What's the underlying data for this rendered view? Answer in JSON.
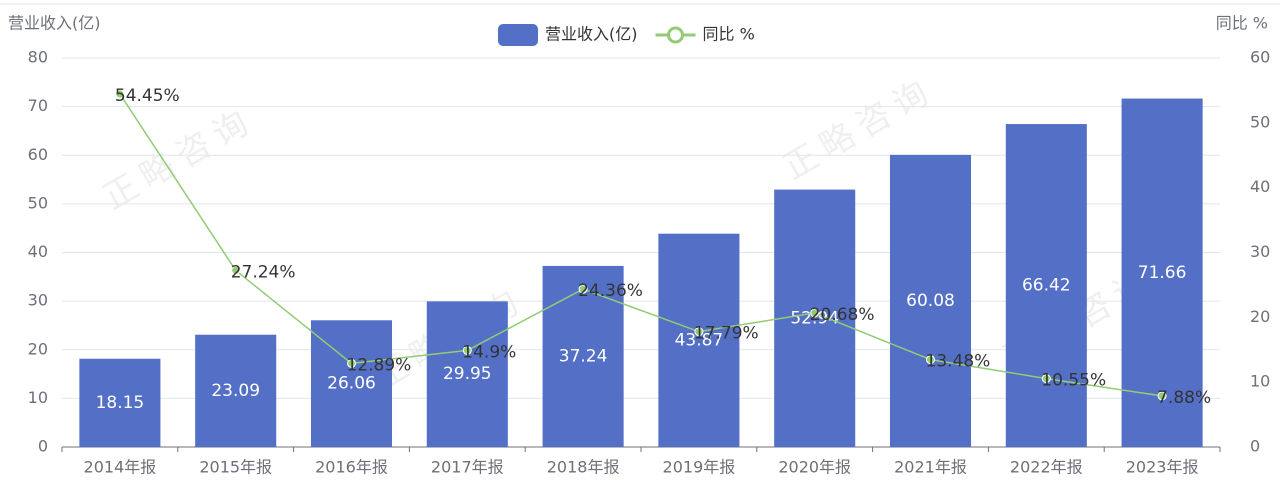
{
  "chart_data": {
    "type": "bar_line",
    "ylabel": "营业收入(亿)",
    "y2label": "同比 %",
    "watermark": "正略咨询",
    "categories": [
      "2014年报",
      "2015年报",
      "2016年报",
      "2017年报",
      "2018年报",
      "2019年报",
      "2020年报",
      "2021年报",
      "2022年报",
      "2023年报"
    ],
    "series": [
      {
        "name": "营业收入(亿)",
        "type": "bar",
        "color": "#5470c6",
        "values": [
          18.15,
          23.09,
          26.06,
          29.95,
          37.24,
          43.87,
          52.94,
          60.08,
          66.42,
          71.66
        ]
      },
      {
        "name": "同比 %",
        "type": "line",
        "axis": "y2",
        "color": "#91cc75",
        "values": [
          54.45,
          27.24,
          12.89,
          14.9,
          24.36,
          17.79,
          20.68,
          13.48,
          10.55,
          7.88
        ],
        "value_labels": [
          "54.45%",
          "27.24%",
          "12.89%",
          "14.9%",
          "24.36%",
          "17.79%",
          "20.68%",
          "13.48%",
          "10.55%",
          "7.88%"
        ]
      }
    ],
    "ylim": [
      0,
      80
    ],
    "yticks": [
      0,
      10,
      20,
      30,
      40,
      50,
      60,
      70,
      80
    ],
    "y2lim": [
      0,
      60
    ],
    "y2ticks": [
      0,
      10,
      20,
      30,
      40,
      50,
      60
    ],
    "grid": true
  }
}
